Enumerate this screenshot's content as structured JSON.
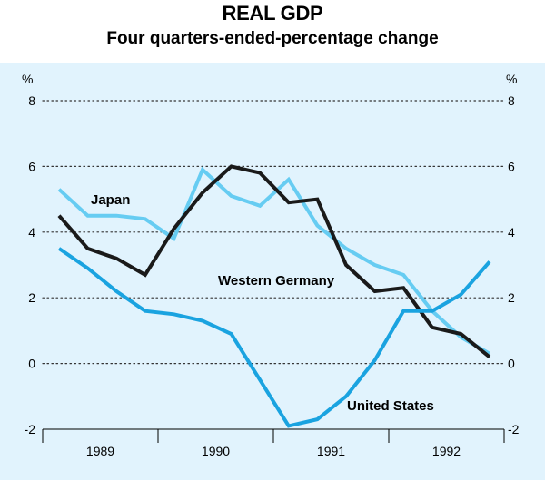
{
  "title": "REAL GDP",
  "subtitle": "Four quarters-ended-percentage change",
  "chart_data": {
    "type": "line",
    "title": "REAL GDP",
    "subtitle": "Four quarters-ended-percentage change",
    "y_unit_left": "%",
    "y_unit_right": "%",
    "ylim": [
      -2,
      8
    ],
    "yticks": [
      -2,
      0,
      2,
      4,
      6,
      8
    ],
    "grid": "dotted horizontal",
    "year_labels": [
      "1989",
      "1990",
      "1991",
      "1992"
    ],
    "quarters": [
      "1989 Q1",
      "1989 Q2",
      "1989 Q3",
      "1989 Q4",
      "1990 Q1",
      "1990 Q2",
      "1990 Q3",
      "1990 Q4",
      "1991 Q1",
      "1991 Q2",
      "1991 Q3",
      "1991 Q4",
      "1992 Q1",
      "1992 Q2",
      "1992 Q3",
      "1992 Q4"
    ],
    "series": [
      {
        "name": "Japan",
        "color": "#66ccf2",
        "values": [
          5.3,
          4.5,
          4.5,
          4.4,
          3.8,
          5.9,
          5.1,
          4.8,
          5.6,
          4.2,
          3.5,
          3.0,
          2.7,
          1.6,
          0.8,
          0.3
        ]
      },
      {
        "name": "Western Germany",
        "color": "#1a1a1a",
        "values": [
          4.5,
          3.5,
          3.2,
          2.7,
          4.1,
          5.2,
          6.0,
          5.8,
          4.9,
          5.0,
          3.0,
          2.2,
          2.3,
          1.1,
          0.9,
          0.2
        ]
      },
      {
        "name": "United States",
        "color": "#1aa3e0",
        "values": [
          3.5,
          2.9,
          2.2,
          1.6,
          1.5,
          1.3,
          0.9,
          -0.5,
          -1.9,
          -1.7,
          -1.0,
          0.1,
          1.6,
          1.6,
          2.1,
          3.1
        ]
      }
    ]
  }
}
